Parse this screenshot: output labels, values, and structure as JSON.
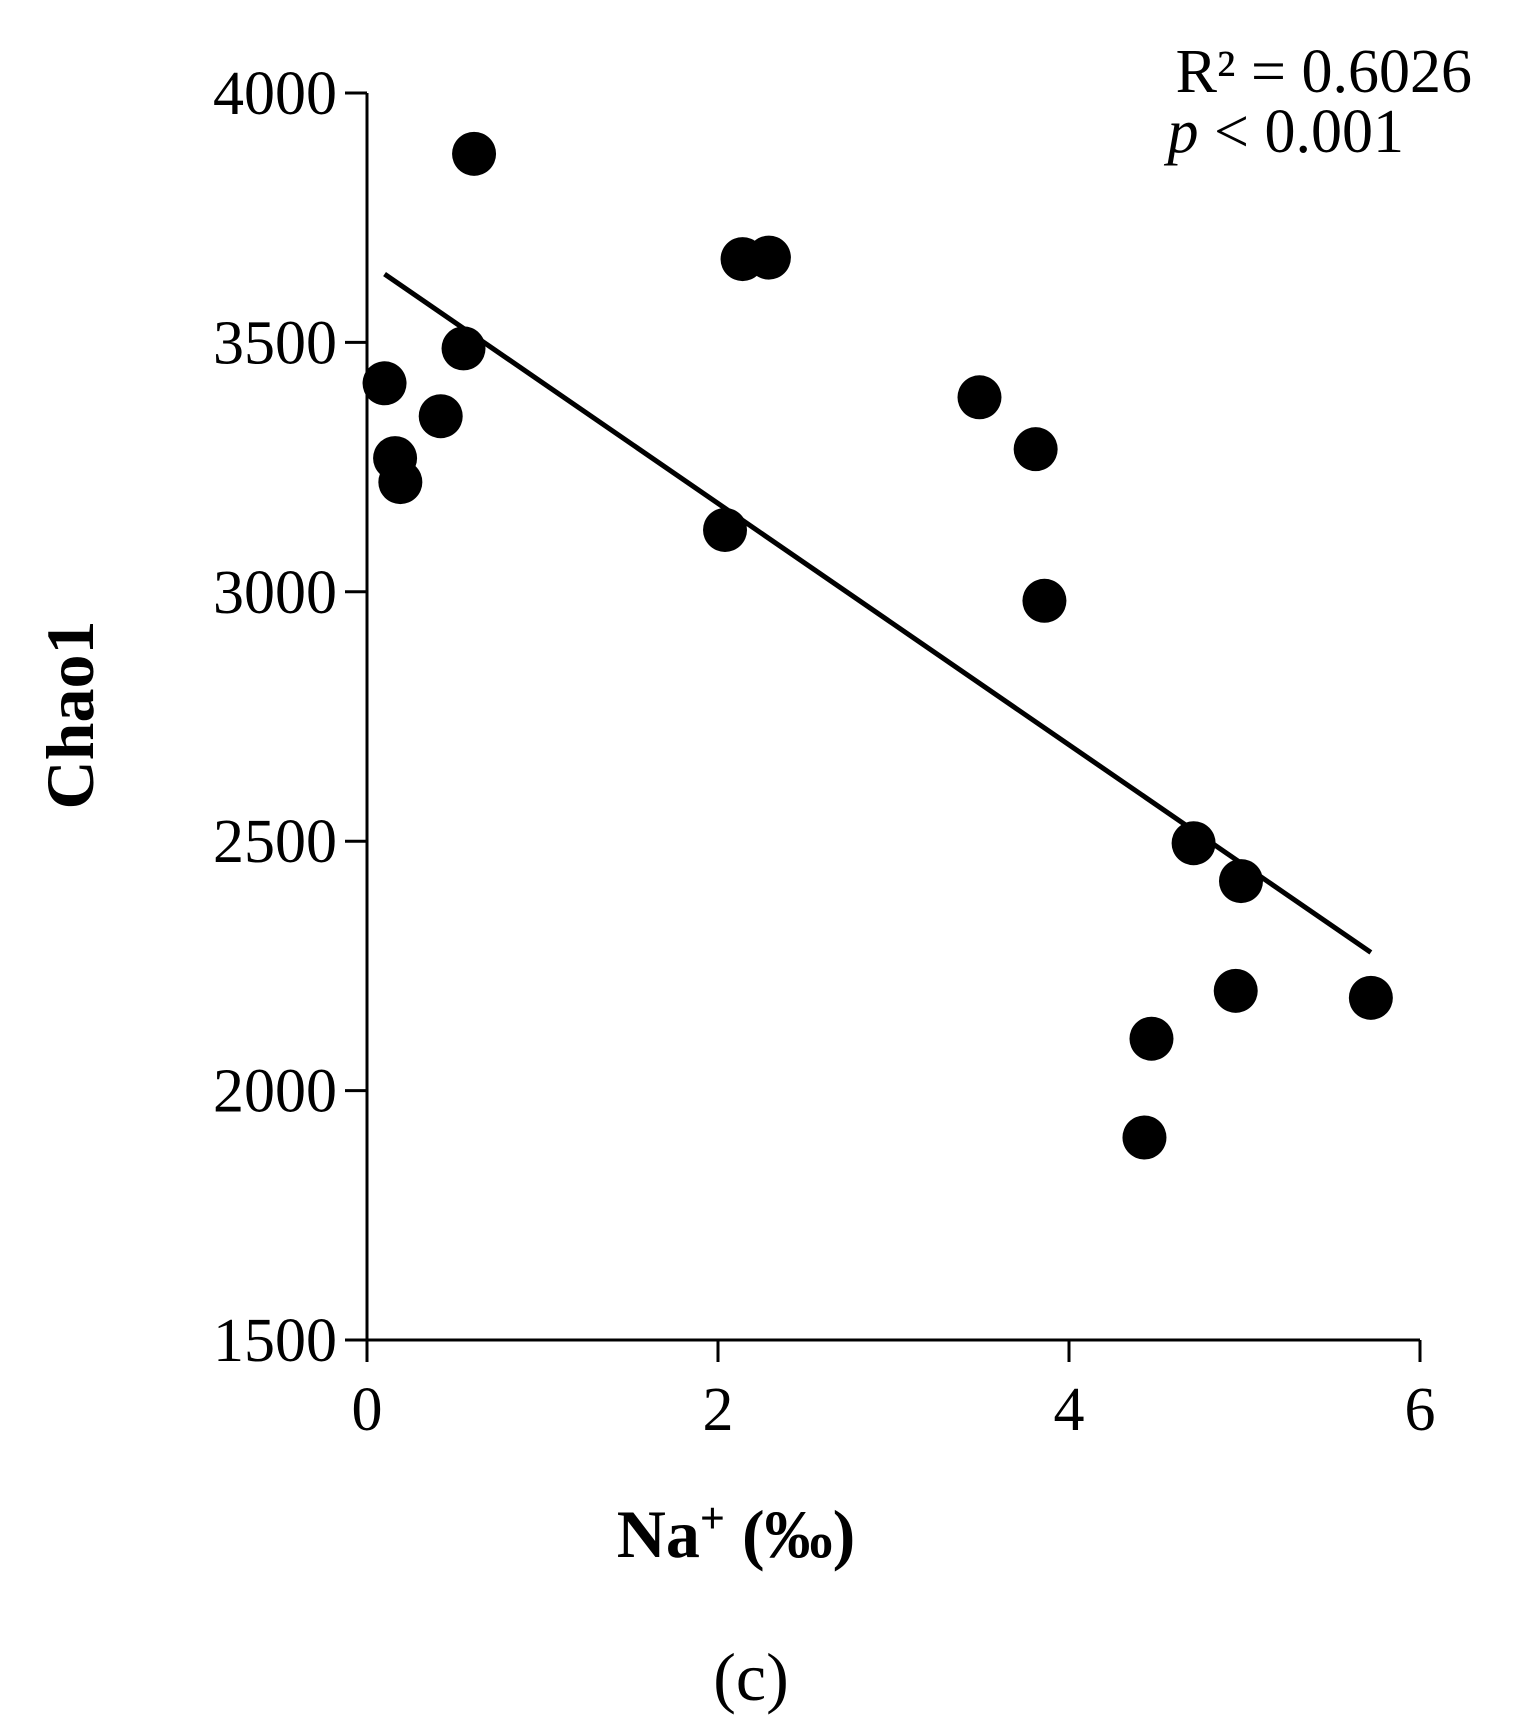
{
  "chart_data": {
    "type": "scatter",
    "xlabel_main": "Na",
    "xlabel_sup": "+",
    "xlabel_unit": " (‰)",
    "ylabel": "Chao1",
    "xlim": [
      0,
      6
    ],
    "ylim": [
      1500,
      4000
    ],
    "xticks": [
      0,
      2,
      4,
      6
    ],
    "yticks": [
      1500,
      2000,
      2500,
      3000,
      3500,
      4000
    ],
    "grid": false,
    "legend": "none",
    "points": [
      {
        "x": 0.1,
        "y": 3418
      },
      {
        "x": 0.16,
        "y": 3268
      },
      {
        "x": 0.19,
        "y": 3220
      },
      {
        "x": 0.42,
        "y": 3352
      },
      {
        "x": 0.55,
        "y": 3488
      },
      {
        "x": 0.61,
        "y": 3878
      },
      {
        "x": 2.04,
        "y": 3124
      },
      {
        "x": 2.14,
        "y": 3667
      },
      {
        "x": 2.29,
        "y": 3670
      },
      {
        "x": 3.49,
        "y": 3390
      },
      {
        "x": 3.81,
        "y": 3286
      },
      {
        "x": 3.86,
        "y": 2982
      },
      {
        "x": 4.43,
        "y": 1906
      },
      {
        "x": 4.47,
        "y": 2104
      },
      {
        "x": 4.71,
        "y": 2496
      },
      {
        "x": 4.95,
        "y": 2200
      },
      {
        "x": 4.98,
        "y": 2420
      },
      {
        "x": 5.72,
        "y": 2186
      }
    ],
    "trendline": {
      "x": [
        0.1,
        5.72
      ],
      "y": [
        3637,
        2277
      ]
    },
    "annotation": {
      "r2_label": "R² = 0.6026",
      "p_letter": "p",
      "p_rest": " < 0.001"
    },
    "panel_label": "(c)",
    "colors": {
      "marker": "#000000",
      "line": "#000000",
      "axis": "#000000"
    }
  }
}
